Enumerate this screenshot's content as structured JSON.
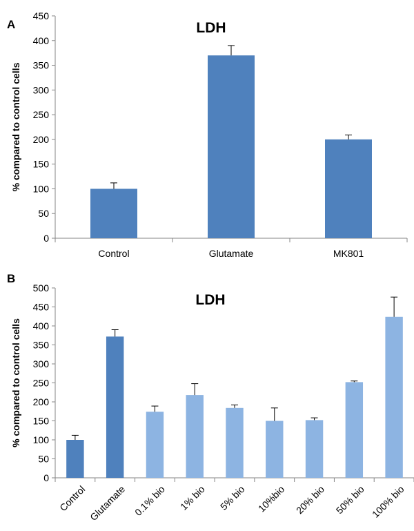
{
  "figure": {
    "panels": [
      "A",
      "B"
    ]
  },
  "chart_data": [
    {
      "type": "bar",
      "title": "LDH",
      "xlabel": "",
      "ylabel": "% compared to control cells",
      "ylim": [
        0,
        450
      ],
      "ytick_step": 50,
      "grid": false,
      "categories": [
        "Control",
        "Glutamate",
        "MK801"
      ],
      "values": [
        100,
        370,
        200
      ],
      "errors": [
        12,
        20,
        9
      ],
      "colors": [
        "#4f81bd",
        "#4f81bd",
        "#4f81bd"
      ],
      "xtick_rotation": 0
    },
    {
      "type": "bar",
      "title": "LDH",
      "xlabel": "",
      "ylabel": "% compared to control cells",
      "ylim": [
        0,
        500
      ],
      "ytick_step": 50,
      "grid": false,
      "categories": [
        "Control",
        "Glutamate",
        "0.1% bio",
        "1% bio",
        "5% bio",
        "10%bio",
        "20% bio",
        "50% bio",
        "100% bio"
      ],
      "values": [
        100,
        372,
        174,
        218,
        184,
        150,
        152,
        252,
        424
      ],
      "errors": [
        12,
        18,
        15,
        30,
        8,
        34,
        6,
        3,
        52
      ],
      "colors": [
        "#4f81bd",
        "#4f81bd",
        "#8db4e2",
        "#8db4e2",
        "#8db4e2",
        "#8db4e2",
        "#8db4e2",
        "#8db4e2",
        "#8db4e2"
      ],
      "xtick_rotation": -45
    }
  ]
}
